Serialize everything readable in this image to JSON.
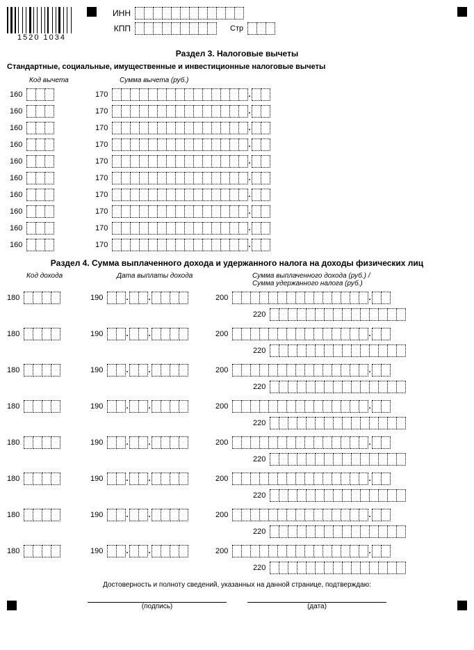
{
  "barcode": {
    "number": "1520 1034"
  },
  "header": {
    "inn_label": "ИНН",
    "kpp_label": "КПП",
    "page_label": "Стр"
  },
  "inn_cells": 12,
  "kpp_cells": 9,
  "page_cells": 3,
  "section3": {
    "title": "Раздел 3. Налоговые вычеты",
    "subtitle": "Стандартные, социальные, имущественные и инвестиционные налоговые вычеты",
    "head_code": "Код вычета",
    "head_sum": "Сумма вычета (руб.)",
    "rows": 10,
    "left_label": "160",
    "right_label": "170",
    "code_cells": 3,
    "sum_int_cells": 15,
    "sum_dec_cells": 2
  },
  "section4": {
    "title": "Раздел 4. Сумма выплаченного дохода и удержанного налога на доходы физических лиц",
    "head_code": "Код дохода",
    "head_date": "Дата выплаты дохода",
    "head_sum": "Сумма выплаченного дохода (руб.) /\nСумма удержанного налога (руб.)",
    "blocks": 8,
    "l180": "180",
    "l190": "190",
    "l200": "200",
    "l220": "220",
    "code_cells": 4,
    "date_parts": [
      2,
      2,
      4
    ],
    "sum200_int": 15,
    "sum200_dec": 2,
    "sum220_int": 15
  },
  "footer": {
    "confirm": "Достоверность и полноту сведений, указанных на данной странице, подтверждаю:",
    "sign": "(подпись)",
    "date": "(дата)"
  }
}
